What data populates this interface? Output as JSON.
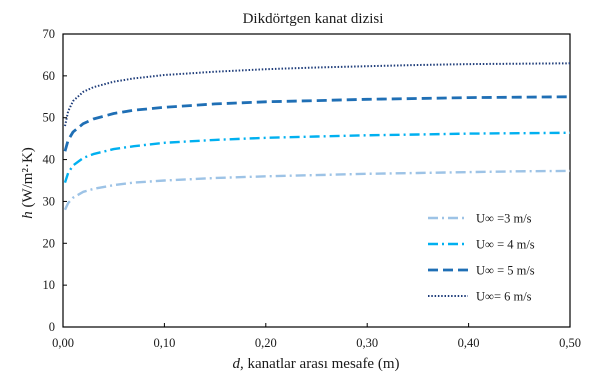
{
  "chart_data": {
    "type": "line",
    "title": "Dikdörtgen kanat dizisi",
    "xlabel": {
      "italic": "d",
      "rest": ", kanatlar arası mesafe (m)"
    },
    "ylabel": {
      "italic": "h",
      "rest": " (W/m²·K)"
    },
    "xlim": [
      0,
      0.5
    ],
    "ylim": [
      0,
      70
    ],
    "x_ticks": [
      0,
      0.1,
      0.2,
      0.3,
      0.4,
      0.5
    ],
    "x_tick_labels": [
      "0,00",
      "0,10",
      "0,20",
      "0,30",
      "0,40",
      "0,50"
    ],
    "y_ticks": [
      0,
      10,
      20,
      30,
      40,
      50,
      60,
      70
    ],
    "y_tick_labels": [
      "0",
      "10",
      "20",
      "30",
      "40",
      "50",
      "60",
      "70"
    ],
    "grid": false,
    "legend_position": "bottom-right",
    "x": [
      0.002,
      0.005,
      0.01,
      0.02,
      0.03,
      0.05,
      0.07,
      0.1,
      0.15,
      0.2,
      0.25,
      0.3,
      0.35,
      0.4,
      0.45,
      0.5
    ],
    "series": [
      {
        "name": "U∞ =3 m/s",
        "color": "#9dc3e6",
        "dash": "10,4,2,4",
        "width": 2.4,
        "values": [
          28.0,
          29.6,
          30.9,
          32.3,
          33.0,
          33.9,
          34.5,
          35.0,
          35.6,
          36.0,
          36.3,
          36.6,
          36.8,
          37.0,
          37.2,
          37.3
        ]
      },
      {
        "name": "U∞ = 4 m/s",
        "color": "#00b0f0",
        "dash": "10,4,2,4",
        "width": 2.4,
        "values": [
          34.5,
          36.8,
          38.6,
          40.4,
          41.3,
          42.5,
          43.2,
          44.0,
          44.7,
          45.2,
          45.5,
          45.8,
          46.0,
          46.2,
          46.3,
          46.4
        ]
      },
      {
        "name": "U∞ = 5 m/s",
        "color": "#1f6fb5",
        "dash": "10,5",
        "width": 2.8,
        "values": [
          42.0,
          44.6,
          46.6,
          48.6,
          49.7,
          51.0,
          51.8,
          52.5,
          53.3,
          53.8,
          54.1,
          54.4,
          54.6,
          54.8,
          54.9,
          55.0
        ]
      },
      {
        "name": "U∞= 6 m/s",
        "color": "#1f3d7a",
        "dash": "1.5,1.8",
        "width": 2.0,
        "values": [
          48.0,
          51.5,
          54.0,
          56.2,
          57.3,
          58.6,
          59.4,
          60.2,
          61.0,
          61.6,
          62.0,
          62.3,
          62.6,
          62.8,
          62.9,
          63.0
        ]
      }
    ]
  }
}
